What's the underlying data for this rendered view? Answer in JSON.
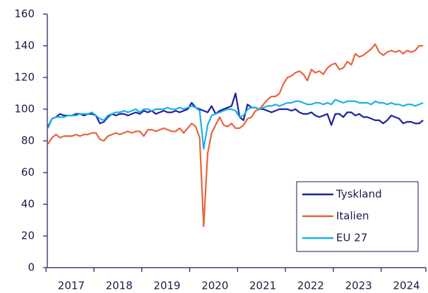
{
  "chart_data": {
    "type": "line",
    "categories": [
      null,
      null,
      null,
      null,
      null,
      null,
      "2017",
      null,
      null,
      null,
      null,
      null,
      null,
      null,
      null,
      null,
      null,
      null,
      "2018",
      null,
      null,
      null,
      null,
      null,
      null,
      null,
      null,
      null,
      null,
      null,
      "2019",
      null,
      null,
      null,
      null,
      null,
      null,
      null,
      null,
      null,
      null,
      null,
      "2020",
      null,
      null,
      null,
      null,
      null,
      null,
      null,
      null,
      null,
      null,
      null,
      "2021",
      null,
      null,
      null,
      null,
      null,
      null,
      null,
      null,
      null,
      null,
      null,
      "2022",
      null,
      null,
      null,
      null,
      null,
      null,
      null,
      null,
      null,
      null,
      null,
      "2023",
      null,
      null,
      null,
      null,
      null,
      null,
      null,
      null,
      null,
      null,
      null,
      "2024",
      null,
      null,
      null,
      null
    ],
    "series": [
      {
        "name": "Tyskland",
        "color": "#1f1f9e",
        "values": [
          89,
          94,
          95,
          97,
          96,
          96,
          96,
          97,
          97,
          96,
          97,
          97,
          96,
          91,
          92,
          95,
          97,
          96,
          97,
          97,
          96,
          97,
          98,
          97,
          99,
          98,
          99,
          97,
          98,
          99,
          98,
          98,
          99,
          98,
          99,
          100,
          104,
          101,
          100,
          99,
          98,
          102,
          97,
          99,
          100,
          101,
          102,
          110,
          95,
          93,
          103,
          101,
          101,
          100,
          100,
          99,
          98,
          99,
          100,
          100,
          100,
          99,
          100,
          98,
          97,
          97,
          98,
          96,
          95,
          96,
          97,
          90,
          97,
          97,
          95,
          98,
          98,
          96,
          97,
          95,
          95,
          94,
          93,
          93,
          91,
          93,
          96,
          95,
          94,
          91,
          92,
          92,
          91,
          91,
          93
        ]
      },
      {
        "name": "Italien",
        "color": "#e8643c",
        "values": [
          78,
          82,
          84,
          82,
          83,
          83,
          83,
          84,
          83,
          84,
          84,
          85,
          85,
          81,
          80,
          83,
          84,
          85,
          84,
          85,
          86,
          85,
          86,
          86,
          83,
          87,
          87,
          86,
          87,
          88,
          87,
          86,
          86,
          88,
          85,
          88,
          91,
          89,
          82,
          26,
          72,
          85,
          90,
          95,
          90,
          89,
          91,
          88,
          88,
          90,
          94,
          95,
          99,
          100,
          103,
          106,
          108,
          108,
          110,
          116,
          120,
          121,
          123,
          124,
          122,
          118,
          125,
          123,
          124,
          122,
          126,
          128,
          129,
          125,
          126,
          130,
          128,
          135,
          133,
          134,
          136,
          138,
          141,
          136,
          134,
          136,
          137,
          136,
          137,
          135,
          137,
          136,
          137,
          140,
          140
        ]
      },
      {
        "name": "EU 27",
        "color": "#1ab0e8",
        "values": [
          88,
          94,
          95,
          95,
          95,
          96,
          96,
          96,
          97,
          97,
          97,
          98,
          96,
          94,
          93,
          96,
          97,
          98,
          98,
          99,
          98,
          99,
          100,
          98,
          100,
          100,
          99,
          100,
          100,
          100,
          101,
          100,
          100,
          101,
          100,
          101,
          102,
          101,
          99,
          75,
          90,
          96,
          97,
          98,
          99,
          100,
          100,
          99,
          95,
          96,
          100,
          101,
          101,
          100,
          101,
          102,
          102,
          103,
          102,
          103,
          104,
          104,
          105,
          105,
          104,
          103,
          103,
          104,
          104,
          103,
          104,
          103,
          106,
          105,
          104,
          105,
          105,
          105,
          104,
          104,
          104,
          103,
          105,
          104,
          104,
          103,
          104,
          103,
          103,
          102,
          103,
          103,
          102,
          103,
          104
        ]
      }
    ],
    "ylim": [
      0,
      160
    ],
    "yticks": [
      0,
      20,
      40,
      60,
      80,
      100,
      120,
      140,
      160
    ],
    "grid": false,
    "legend": "lower right"
  }
}
